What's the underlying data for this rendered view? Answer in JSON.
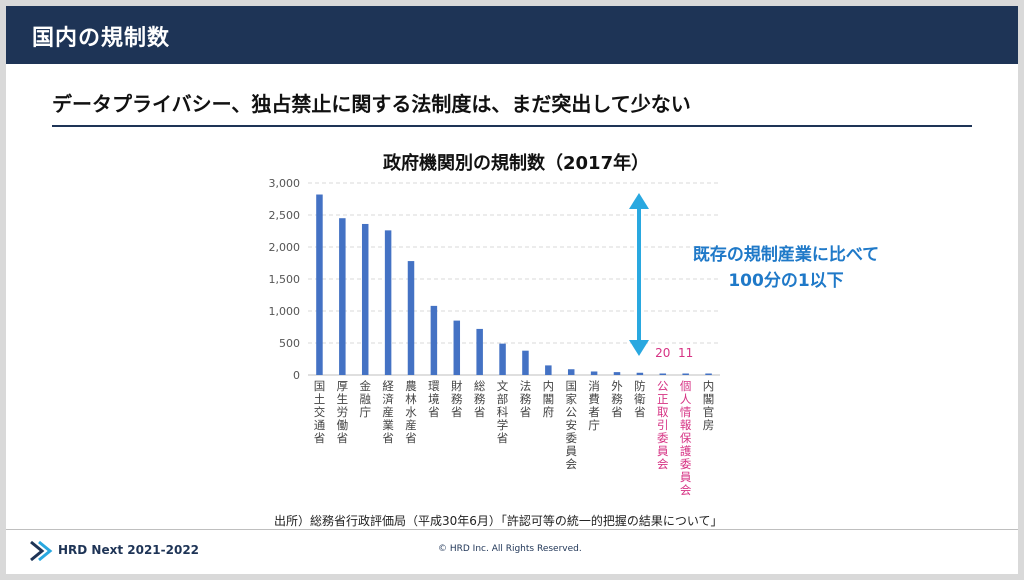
{
  "slide": {
    "header_title": "国内の規制数",
    "subtitle": "データプライバシー、独占禁止に関する法制度は、まだ突出して少ない",
    "source": "出所）総務省行政評価局（平成30年6月）「許認可等の統一的把握の結果について」",
    "note_lines": [
      "既存の規制産業に比べて",
      "100分の1以下"
    ],
    "footer": {
      "brand": "HRD Next 2021-2022",
      "copyright": "© HRD Inc. All Rights Reserved."
    }
  },
  "colors": {
    "header": "#1e3456",
    "bar": "#4472c4",
    "highlight": "#d63384",
    "arrow": "#29a8e0",
    "note": "#1f79c8"
  },
  "chart_data": {
    "type": "bar",
    "title": "政府機関別の規制数（2017年）",
    "categories": [
      "国土交通省",
      "厚生労働省",
      "金融庁",
      "経済産業省",
      "農林水産省",
      "環境省",
      "財務省",
      "総務省",
      "文部科学省",
      "法務省",
      "内閣府",
      "国家公安委員会",
      "消費者庁",
      "外務省",
      "防衛省",
      "公正取引委員会",
      "個人情報保護委員会",
      "内閣官房"
    ],
    "values": [
      2820,
      2450,
      2360,
      2260,
      1780,
      1080,
      850,
      720,
      490,
      380,
      150,
      90,
      55,
      45,
      35,
      20,
      11,
      8
    ],
    "highlighted": [
      "公正取引委員会",
      "個人情報保護委員会"
    ],
    "data_labels": [
      {
        "category": "公正取引委員会",
        "text": "20"
      },
      {
        "category": "個人情報保護委員会",
        "text": "11"
      }
    ],
    "ylim": [
      0,
      3000
    ],
    "yticks": [
      0,
      500,
      1000,
      1500,
      2000,
      2500,
      3000
    ],
    "ytick_labels": [
      "0",
      "500",
      "1,000",
      "1,500",
      "2,000",
      "2,500",
      "3,000"
    ],
    "xlabel": "",
    "ylabel": "",
    "grid": true
  }
}
